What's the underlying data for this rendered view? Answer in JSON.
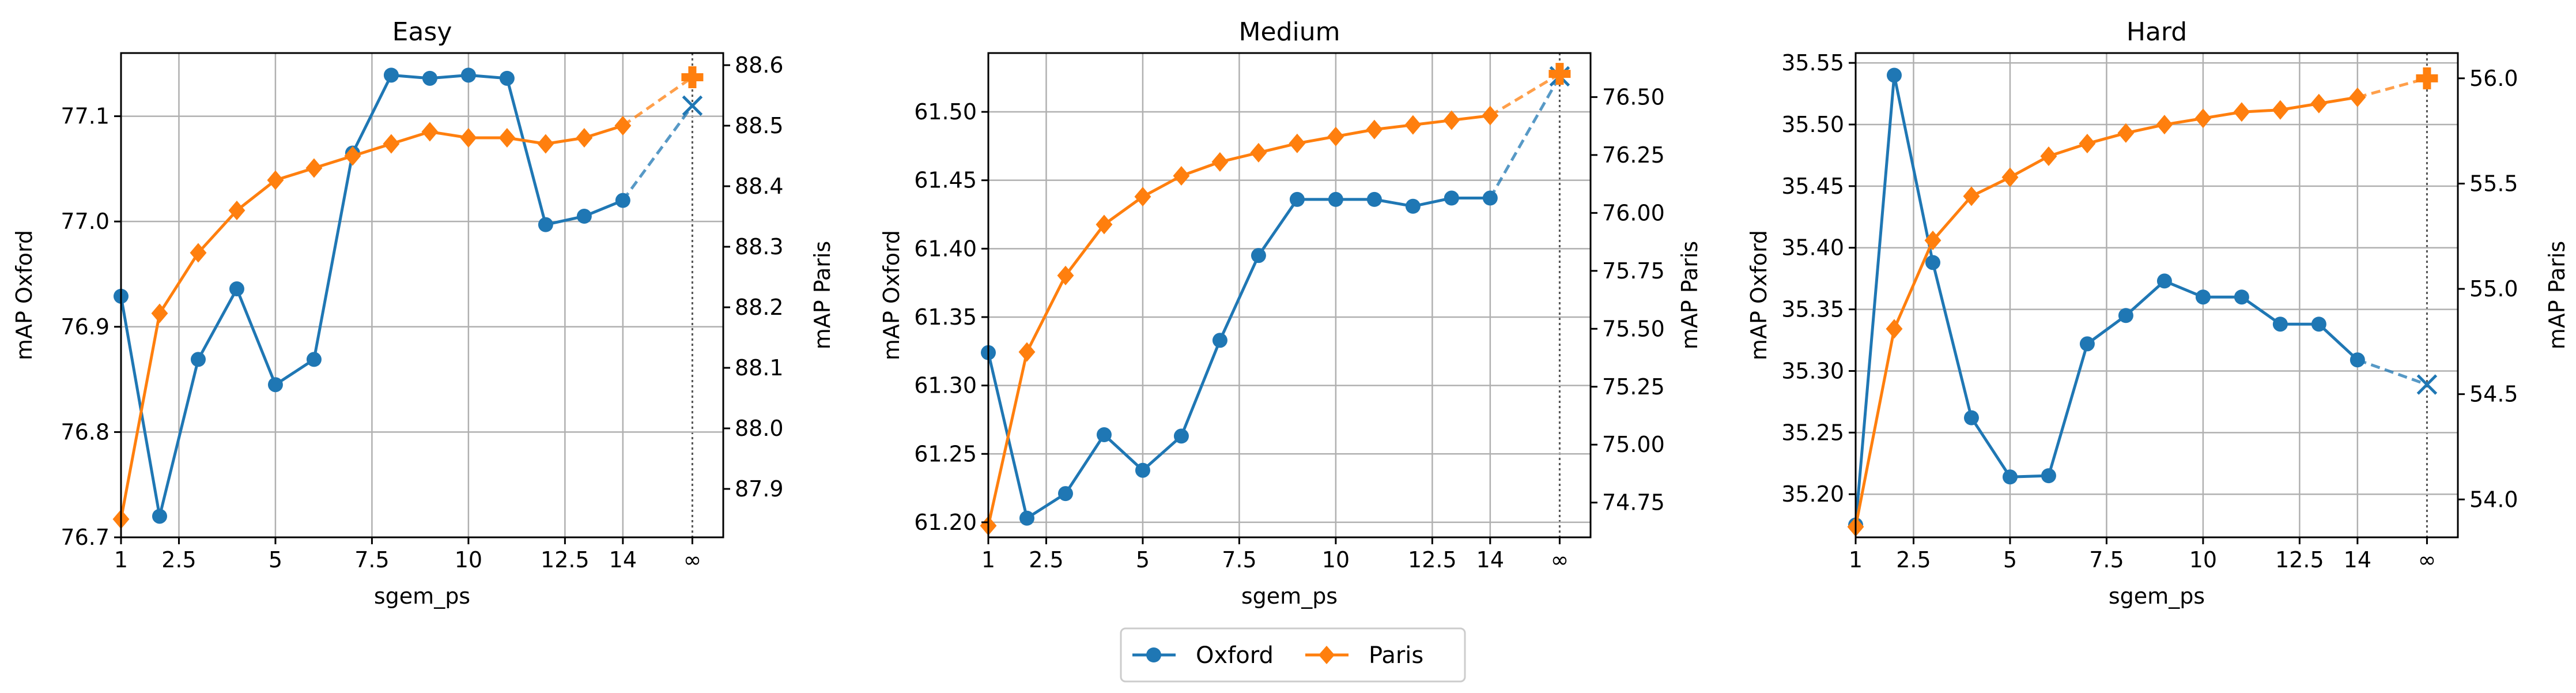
{
  "colors": {
    "oxford": "#1f77b4",
    "paris": "#ff7f0e",
    "grid": "#b0b0b0"
  },
  "legend": {
    "entries": [
      "Oxford",
      "Paris"
    ],
    "placement": "bottom-center"
  },
  "chart_data": [
    {
      "type": "line",
      "title": "Easy",
      "xlabel": "sgem_ps",
      "ylabel_left": "mAP Oxford",
      "ylabel_right": "mAP Paris",
      "x_ticks": [
        "1",
        "2.5",
        "5",
        "7.5",
        "10",
        "12.5",
        "14",
        "∞"
      ],
      "y_left_ticks": [
        "76.7",
        "76.8",
        "76.9",
        "77.0",
        "77.1"
      ],
      "y_right_ticks": [
        "87.9",
        "88.0",
        "88.1",
        "88.2",
        "88.3",
        "88.4",
        "88.5",
        "88.6"
      ],
      "ylim_left": [
        76.7,
        77.16
      ],
      "ylim_right": [
        87.82,
        88.62
      ],
      "x": [
        1,
        2,
        3,
        4,
        5,
        6,
        7,
        8,
        9,
        10,
        11,
        12,
        13,
        14
      ],
      "series": [
        {
          "name": "Oxford",
          "axis": "left",
          "marker": "circle",
          "values": [
            76.929,
            76.72,
            76.869,
            76.936,
            76.845,
            76.869,
            77.065,
            77.139,
            77.136,
            77.139,
            77.136,
            76.997,
            77.005,
            77.02
          ],
          "infinity_value": 77.11
        },
        {
          "name": "Paris",
          "axis": "right",
          "marker": "diamond",
          "values": [
            87.85,
            88.19,
            88.29,
            88.36,
            88.41,
            88.43,
            88.45,
            88.47,
            88.49,
            88.48,
            88.48,
            88.47,
            88.48,
            88.5
          ],
          "infinity_value": 88.58
        }
      ],
      "grid": true
    },
    {
      "type": "line",
      "title": "Medium",
      "xlabel": "sgem_ps",
      "ylabel_left": "mAP Oxford",
      "ylabel_right": "mAP Paris",
      "x_ticks": [
        "1",
        "2.5",
        "5",
        "7.5",
        "10",
        "12.5",
        "14",
        "∞"
      ],
      "y_left_ticks": [
        "61.20",
        "61.25",
        "61.30",
        "61.35",
        "61.40",
        "61.45",
        "61.50"
      ],
      "y_right_ticks": [
        "74.75",
        "75.00",
        "75.25",
        "75.50",
        "75.75",
        "76.00",
        "76.25",
        "76.50"
      ],
      "ylim_left": [
        61.189,
        61.543
      ],
      "ylim_right": [
        74.6,
        76.69
      ],
      "x": [
        1,
        2,
        3,
        4,
        5,
        6,
        7,
        8,
        9,
        10,
        11,
        12,
        13,
        14
      ],
      "series": [
        {
          "name": "Oxford",
          "axis": "left",
          "marker": "circle",
          "values": [
            61.324,
            61.203,
            61.221,
            61.264,
            61.238,
            61.263,
            61.333,
            61.395,
            61.436,
            61.436,
            61.436,
            61.431,
            61.437,
            61.437
          ],
          "infinity_value": 61.526
        },
        {
          "name": "Paris",
          "axis": "right",
          "marker": "diamond",
          "values": [
            74.65,
            75.4,
            75.73,
            75.95,
            76.07,
            76.16,
            76.22,
            76.26,
            76.3,
            76.33,
            76.36,
            76.38,
            76.4,
            76.42
          ],
          "infinity_value": 76.6
        }
      ],
      "grid": true
    },
    {
      "type": "line",
      "title": "Hard",
      "xlabel": "sgem_ps",
      "ylabel_left": "mAP Oxford",
      "ylabel_right": "mAP Paris",
      "x_ticks": [
        "1",
        "2.5",
        "5",
        "7.5",
        "10",
        "12.5",
        "14",
        "∞"
      ],
      "y_left_ticks": [
        "35.20",
        "35.25",
        "35.30",
        "35.35",
        "35.40",
        "35.45",
        "35.50",
        "35.55"
      ],
      "y_right_ticks": [
        "54.0",
        "54.5",
        "55.0",
        "55.5",
        "56.0"
      ],
      "ylim_left": [
        35.165,
        35.558
      ],
      "ylim_right": [
        53.82,
        56.12
      ],
      "x": [
        1,
        2,
        3,
        4,
        5,
        6,
        7,
        8,
        9,
        10,
        11,
        12,
        13,
        14
      ],
      "series": [
        {
          "name": "Oxford",
          "axis": "left",
          "marker": "circle",
          "values": [
            35.175,
            35.54,
            35.388,
            35.262,
            35.214,
            35.215,
            35.322,
            35.345,
            35.373,
            35.36,
            35.36,
            35.338,
            35.338,
            35.309
          ],
          "infinity_value": 35.289
        },
        {
          "name": "Paris",
          "axis": "right",
          "marker": "diamond",
          "values": [
            53.87,
            54.81,
            55.23,
            55.44,
            55.53,
            55.63,
            55.69,
            55.74,
            55.78,
            55.81,
            55.84,
            55.85,
            55.88,
            55.91
          ],
          "infinity_value": 56.0
        }
      ],
      "grid": true
    }
  ]
}
